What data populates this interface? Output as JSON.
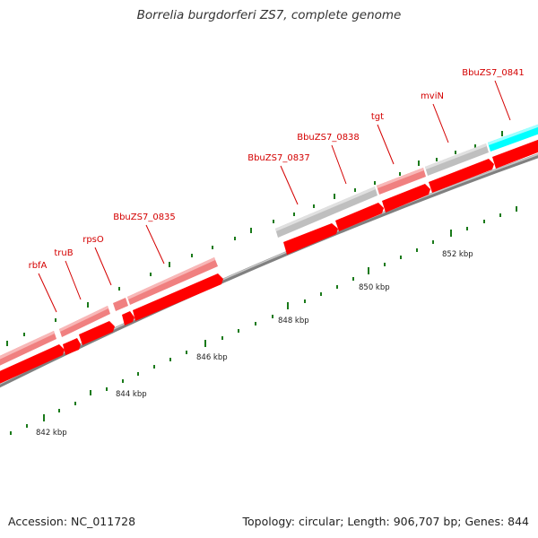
{
  "title": "Borrelia burgdorferi ZS7, complete genome",
  "footer": {
    "accession": "Accession: NC_011728",
    "topology": "Topology: circular; Length: 906,707 bp; Genes: 844"
  },
  "colors": {
    "backbone": "#808080",
    "cds": "#ff0000",
    "gene_pink": "#f08080",
    "gene_gray": "#bfbfbf",
    "gene_cyan": "#00ffff",
    "tick": "#1a7a1a",
    "label": "#d40000"
  },
  "ticks": [
    "842 kbp",
    "844 kbp",
    "846 kbp",
    "848 kbp",
    "850 kbp",
    "852 kbp"
  ],
  "genes": [
    "rbfA",
    "truB",
    "rpsO",
    "BbuZS7_0835",
    "BbuZS7_0837",
    "BbuZS7_0838",
    "tgt",
    "mviN",
    "BbuZS7_0841"
  ]
}
